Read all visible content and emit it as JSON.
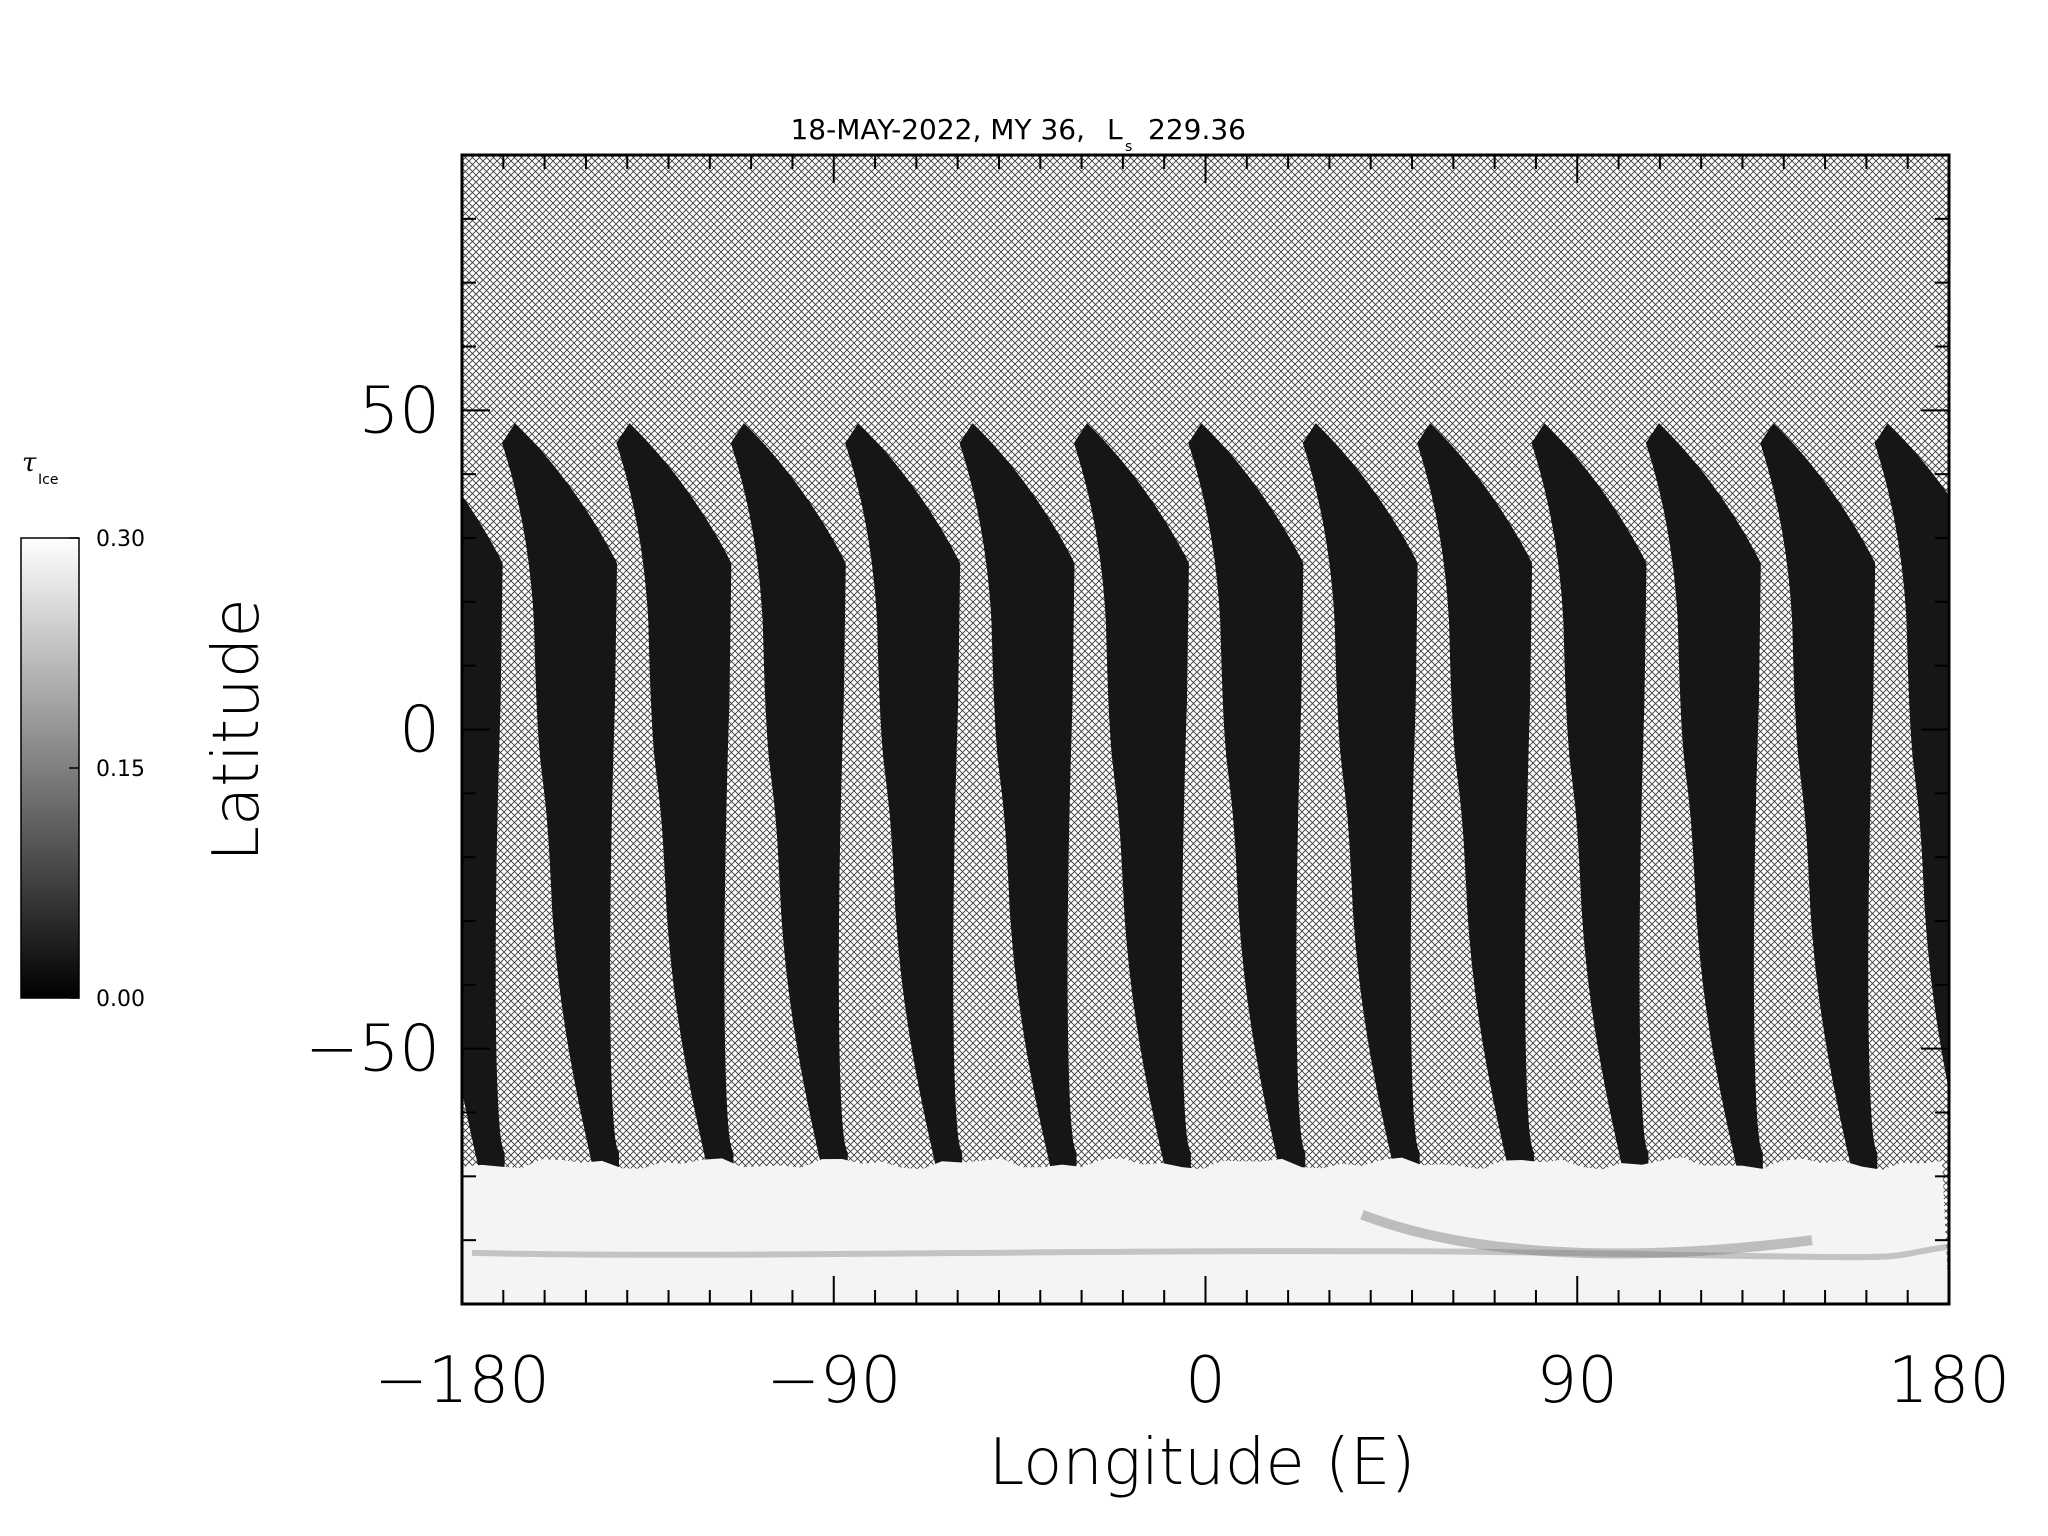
{
  "chart_data": {
    "type": "heatmap",
    "title": "18-MAY-2022, MY 36,",
    "title_ls_symbol": "L",
    "title_ls_subscript": "s",
    "title_ls_value": "229.36",
    "xlabel": "Longitude (E)",
    "ylabel": "Latitude",
    "xlim": [
      -180,
      180
    ],
    "ylim": [
      -90,
      90
    ],
    "x_ticks": [
      -180,
      -90,
      0,
      90,
      180
    ],
    "x_tick_labels": [
      "−180",
      "−90",
      "0",
      "90",
      "180"
    ],
    "y_ticks": [
      -50,
      0,
      50
    ],
    "y_tick_labels": [
      "−50",
      "0",
      "50"
    ],
    "x_minor_step": 10,
    "y_minor_step": 10,
    "no_data_fill": "crosshatch",
    "swath_count": 13,
    "swath_top_latitude": 48,
    "swath_bottom_latitude": -67,
    "south_polar_cap_latitude": -68,
    "colorbar": {
      "title_symbol": "τ",
      "title_subscript": "Ice",
      "min": 0.0,
      "max": 0.3,
      "ticks": [
        0.0,
        0.15,
        0.3
      ],
      "tick_labels": [
        "0.00",
        "0.15",
        "0.30"
      ],
      "colormap": "grayscale"
    },
    "colors": {
      "swath": "#161616",
      "cap": "#f4f4f4",
      "hatch": "#3a3a3a",
      "background": "#ffffff"
    }
  }
}
